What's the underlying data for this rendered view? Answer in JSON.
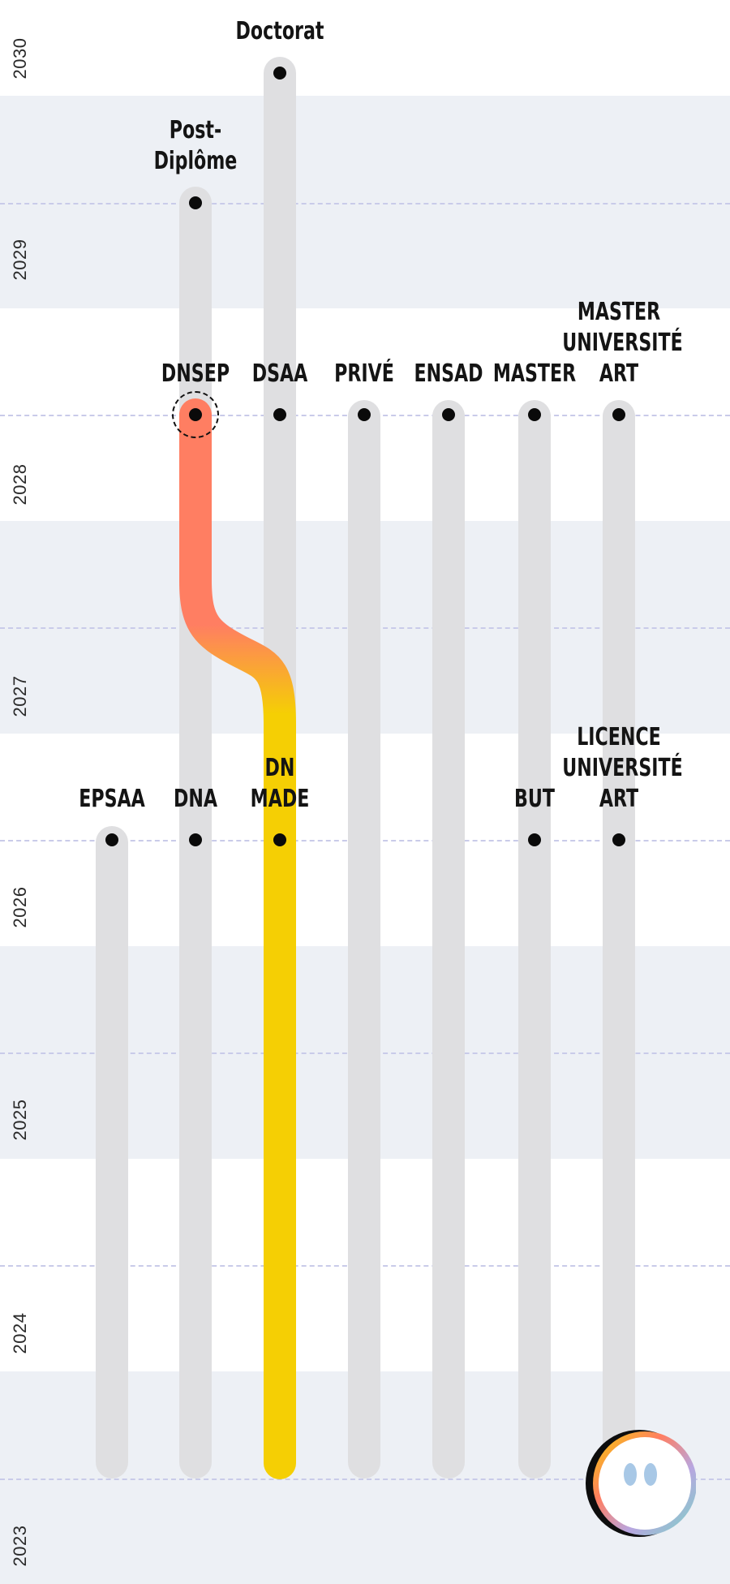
{
  "years": [
    "2030",
    "2029",
    "2028",
    "2027",
    "2026",
    "2025",
    "2024",
    "2023"
  ],
  "tracks": [
    {
      "id": "epsaa",
      "label": "EPSAA"
    },
    {
      "id": "dna",
      "label": "DNA"
    },
    {
      "id": "dnmade",
      "label": "DN\nMADE"
    },
    {
      "id": "post-diplome",
      "label": "Post-\nDiplôme"
    },
    {
      "id": "dnsep",
      "label": "DNSEP"
    },
    {
      "id": "doctorat",
      "label": "Doctorat"
    },
    {
      "id": "dsaa",
      "label": "DSAA"
    },
    {
      "id": "prive",
      "label": "PRIVÉ"
    },
    {
      "id": "ensad",
      "label": "ENSAD"
    },
    {
      "id": "master",
      "label": "MASTER"
    },
    {
      "id": "but",
      "label": "BUT"
    },
    {
      "id": "master-universite-art",
      "label": "MASTER\nUNIVERSITÉ\nART"
    },
    {
      "id": "licence-universite-art",
      "label": "LICENCE\nUNIVERSITÉ\nART"
    }
  ],
  "route": {
    "from": "DN MADE",
    "to": "DNSEP",
    "colors": {
      "start": "#f5cf04",
      "end": "#ff7e62"
    }
  },
  "colors": {
    "band": "#edf0f5",
    "track": "#dfdfe1",
    "dash": "#c9cbe9"
  },
  "mascot": {
    "icon": "mascot-face-icon"
  }
}
